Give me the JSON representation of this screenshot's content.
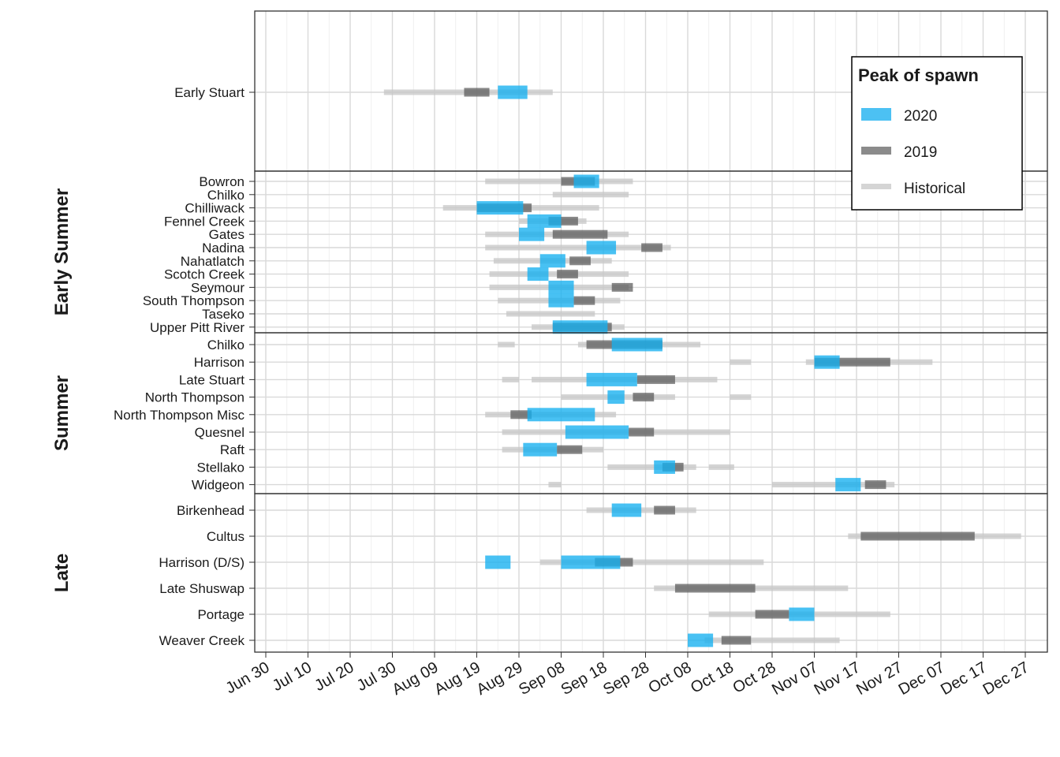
{
  "chart_data": {
    "type": "timeline",
    "legend": {
      "title": "Peak of spawn",
      "placement": "top-right",
      "entries": [
        {
          "name": "2020",
          "color": "#1ab0ef"
        },
        {
          "name": "2019",
          "color": "#5a5a5a"
        },
        {
          "name": "Historical",
          "color": "#d0d0d0"
        }
      ]
    },
    "x_axis": {
      "ticks": [
        "Jun 30",
        "Jul 10",
        "Jul 20",
        "Jul 30",
        "Aug 09",
        "Aug 19",
        "Aug 29",
        "Sep 08",
        "Sep 18",
        "Sep 28",
        "Oct 08",
        "Oct 18",
        "Oct 28",
        "Nov 07",
        "Nov 17",
        "Nov 27",
        "Dec 07",
        "Dec 17",
        "Dec 27"
      ],
      "range": [
        "Jun 27",
        "Dec 31"
      ]
    },
    "grid": true,
    "facets": [
      {
        "name": "",
        "rows": [
          {
            "stock": "Early Stuart",
            "historical": [
              [
                "Jul 28",
                "Sep 06"
              ]
            ],
            "y2019": [
              [
                "Aug 16",
                "Aug 22"
              ]
            ],
            "y2020": [
              [
                "Aug 24",
                "Aug 31"
              ]
            ]
          }
        ]
      },
      {
        "name": "Early Summer",
        "rows": [
          {
            "stock": "Bowron",
            "historical": [
              [
                "Aug 21",
                "Sep 25"
              ]
            ],
            "y2019": [
              [
                "Sep 08",
                "Sep 16"
              ]
            ],
            "y2020": [
              [
                "Sep 11",
                "Sep 17"
              ]
            ]
          },
          {
            "stock": "Chilko",
            "historical": [
              [
                "Sep 06",
                "Sep 24"
              ]
            ],
            "y2019": [],
            "y2020": []
          },
          {
            "stock": "Chilliwack",
            "historical": [
              [
                "Aug 11",
                "Sep 17"
              ]
            ],
            "y2019": [
              [
                "Aug 19",
                "Sep 01"
              ]
            ],
            "y2020": [
              [
                "Aug 19",
                "Aug 30"
              ]
            ]
          },
          {
            "stock": "Fennel Creek",
            "historical": [
              [
                "Aug 29",
                "Sep 14"
              ]
            ],
            "y2019": [
              [
                "Sep 05",
                "Sep 12"
              ]
            ],
            "y2020": [
              [
                "Aug 31",
                "Sep 08"
              ]
            ]
          },
          {
            "stock": "Gates",
            "historical": [
              [
                "Aug 21",
                "Sep 24"
              ]
            ],
            "y2019": [
              [
                "Sep 06",
                "Sep 19"
              ]
            ],
            "y2020": [
              [
                "Aug 29",
                "Sep 04"
              ]
            ]
          },
          {
            "stock": "Nadina",
            "historical": [
              [
                "Aug 21",
                "Oct 04"
              ]
            ],
            "y2019": [
              [
                "Sep 27",
                "Oct 02"
              ]
            ],
            "y2020": [
              [
                "Sep 14",
                "Sep 21"
              ]
            ]
          },
          {
            "stock": "Nahatlatch",
            "historical": [
              [
                "Aug 23",
                "Sep 20"
              ]
            ],
            "y2019": [
              [
                "Sep 10",
                "Sep 15"
              ]
            ],
            "y2020": [
              [
                "Sep 03",
                "Sep 09"
              ]
            ]
          },
          {
            "stock": "Scotch Creek",
            "historical": [
              [
                "Aug 22",
                "Sep 24"
              ]
            ],
            "y2019": [
              [
                "Sep 07",
                "Sep 12"
              ]
            ],
            "y2020": [
              [
                "Aug 31",
                "Sep 05"
              ]
            ]
          },
          {
            "stock": "Seymour",
            "historical": [
              [
                "Aug 22",
                "Sep 24"
              ]
            ],
            "y2019": [
              [
                "Sep 20",
                "Sep 25"
              ]
            ],
            "y2020": [
              [
                "Sep 05",
                "Sep 11"
              ]
            ]
          },
          {
            "stock": "South Thompson",
            "historical": [
              [
                "Aug 24",
                "Sep 22"
              ]
            ],
            "y2019": [
              [
                "Sep 11",
                "Sep 16"
              ]
            ],
            "y2020": [
              [
                "Sep 05",
                "Sep 11"
              ]
            ]
          },
          {
            "stock": "Taseko",
            "historical": [
              [
                "Aug 26",
                "Sep 16"
              ]
            ],
            "y2019": [],
            "y2020": []
          },
          {
            "stock": "Upper Pitt River",
            "historical": [
              [
                "Sep 01",
                "Sep 23"
              ]
            ],
            "y2019": [
              [
                "Sep 06",
                "Sep 20"
              ]
            ],
            "y2020": [
              [
                "Sep 06",
                "Sep 19"
              ]
            ]
          }
        ]
      },
      {
        "name": "Summer",
        "rows": [
          {
            "stock": "Chilko",
            "historical": [
              [
                "Aug 24",
                "Aug 28"
              ],
              [
                "Sep 12",
                "Oct 11"
              ]
            ],
            "y2019": [
              [
                "Sep 14",
                "Oct 02"
              ]
            ],
            "y2020": [
              [
                "Sep 20",
                "Oct 02"
              ]
            ]
          },
          {
            "stock": "Harrison",
            "historical": [
              [
                "Oct 18",
                "Oct 23"
              ],
              [
                "Nov 05",
                "Dec 05"
              ]
            ],
            "y2019": [
              [
                "Nov 07",
                "Nov 25"
              ]
            ],
            "y2020": [
              [
                "Nov 07",
                "Nov 13"
              ]
            ]
          },
          {
            "stock": "Late Stuart",
            "historical": [
              [
                "Aug 25",
                "Aug 29"
              ],
              [
                "Sep 01",
                "Oct 15"
              ]
            ],
            "y2019": [
              [
                "Sep 26",
                "Oct 05"
              ]
            ],
            "y2020": [
              [
                "Sep 14",
                "Sep 26"
              ]
            ]
          },
          {
            "stock": "North Thompson",
            "historical": [
              [
                "Sep 08",
                "Oct 05"
              ],
              [
                "Oct 18",
                "Oct 23"
              ]
            ],
            "y2019": [
              [
                "Sep 25",
                "Sep 30"
              ]
            ],
            "y2020": [
              [
                "Sep 19",
                "Sep 23"
              ]
            ]
          },
          {
            "stock": "North Thompson Misc",
            "historical": [
              [
                "Aug 21",
                "Sep 21"
              ]
            ],
            "y2019": [
              [
                "Aug 27",
                "Sep 01"
              ]
            ],
            "y2020": [
              [
                "Aug 31",
                "Sep 16"
              ]
            ]
          },
          {
            "stock": "Quesnel",
            "historical": [
              [
                "Aug 25",
                "Oct 18"
              ]
            ],
            "y2019": [
              [
                "Sep 24",
                "Sep 30"
              ]
            ],
            "y2020": [
              [
                "Sep 09",
                "Sep 24"
              ]
            ]
          },
          {
            "stock": "Raft",
            "historical": [
              [
                "Aug 25",
                "Sep 18"
              ]
            ],
            "y2019": [
              [
                "Sep 07",
                "Sep 13"
              ]
            ],
            "y2020": [
              [
                "Aug 30",
                "Sep 07"
              ]
            ]
          },
          {
            "stock": "Stellako",
            "historical": [
              [
                "Sep 19",
                "Oct 10"
              ],
              [
                "Oct 13",
                "Oct 19"
              ]
            ],
            "y2019": [
              [
                "Oct 02",
                "Oct 07"
              ]
            ],
            "y2020": [
              [
                "Sep 30",
                "Oct 05"
              ]
            ]
          },
          {
            "stock": "Widgeon",
            "historical": [
              [
                "Sep 05",
                "Sep 08"
              ],
              [
                "Oct 28",
                "Nov 26"
              ]
            ],
            "y2019": [
              [
                "Nov 19",
                "Nov 24"
              ]
            ],
            "y2020": [
              [
                "Nov 12",
                "Nov 18"
              ]
            ]
          }
        ]
      },
      {
        "name": "Late",
        "rows": [
          {
            "stock": "Birkenhead",
            "historical": [
              [
                "Sep 14",
                "Oct 10"
              ]
            ],
            "y2019": [
              [
                "Sep 30",
                "Oct 05"
              ]
            ],
            "y2020": [
              [
                "Sep 20",
                "Sep 27"
              ]
            ]
          },
          {
            "stock": "Cultus",
            "historical": [
              [
                "Nov 15",
                "Dec 26"
              ]
            ],
            "y2019": [
              [
                "Nov 18",
                "Dec 15"
              ]
            ],
            "y2020": []
          },
          {
            "stock": "Harrison (D/S)",
            "historical": [
              [
                "Sep 03",
                "Oct 26"
              ]
            ],
            "y2019": [
              [
                "Sep 16",
                "Sep 25"
              ]
            ],
            "y2020": [
              [
                "Aug 21",
                "Aug 27"
              ],
              [
                "Sep 08",
                "Sep 22"
              ]
            ]
          },
          {
            "stock": "Late Shuswap",
            "historical": [
              [
                "Sep 30",
                "Nov 15"
              ]
            ],
            "y2019": [
              [
                "Oct 05",
                "Oct 24"
              ]
            ],
            "y2020": []
          },
          {
            "stock": "Portage",
            "historical": [
              [
                "Oct 13",
                "Nov 25"
              ]
            ],
            "y2019": [
              [
                "Oct 24",
                "Nov 01"
              ]
            ],
            "y2020": [
              [
                "Nov 01",
                "Nov 07"
              ]
            ]
          },
          {
            "stock": "Weaver Creek",
            "historical": [
              [
                "Oct 12",
                "Nov 13"
              ]
            ],
            "y2019": [
              [
                "Oct 16",
                "Oct 23"
              ]
            ],
            "y2020": [
              [
                "Oct 08",
                "Oct 14"
              ]
            ]
          }
        ]
      }
    ]
  }
}
